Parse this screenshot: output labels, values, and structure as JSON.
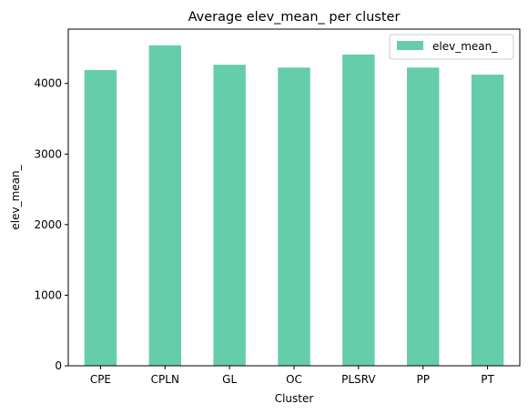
{
  "chart_data": {
    "type": "bar",
    "title": "Average elev_mean_ per cluster",
    "xlabel": "Cluster",
    "ylabel": "elev_mean_",
    "categories": [
      "CPE",
      "CPLN",
      "GL",
      "OC",
      "PLSRV",
      "PP",
      "PT"
    ],
    "series": [
      {
        "name": "elev_mean_",
        "color": "#66cdaa",
        "values": [
          4190,
          4540,
          4265,
          4225,
          4410,
          4225,
          4125
        ]
      }
    ],
    "ylim": [
      0,
      4770
    ],
    "yticks": [
      0,
      1000,
      2000,
      3000,
      4000
    ],
    "grid": false,
    "legend_position": "top-right"
  }
}
